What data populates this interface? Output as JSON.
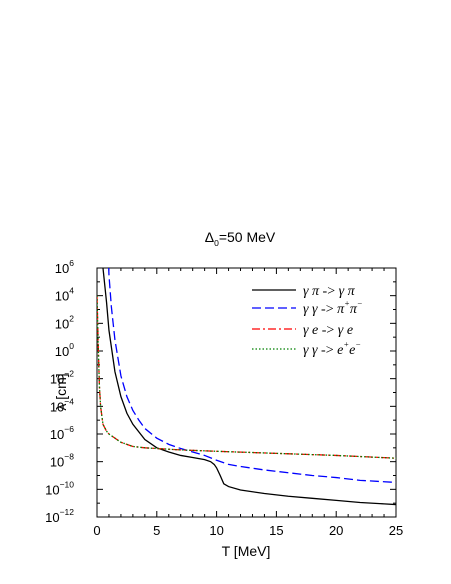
{
  "chart_data": {
    "type": "line",
    "title": "Δ0=50 MeV",
    "title_main": "Δ",
    "title_sub": "0",
    "title_rest": "=50 MeV",
    "xlabel": "T [MeV]",
    "ylabel": "λ [cm]",
    "xlim": [
      0,
      25
    ],
    "ylim_log10": [
      -12,
      6
    ],
    "y_scale": "log",
    "x_ticks": [
      0,
      5,
      10,
      15,
      20,
      25
    ],
    "y_tick_exponents": [
      6,
      4,
      2,
      0,
      -2,
      -4,
      -6,
      -8,
      -10,
      -12
    ],
    "y_tick_base": "10",
    "legend_position": "top-right",
    "series": [
      {
        "name": "γ π -> γ π",
        "color": "#000000",
        "dash": "solid",
        "x": [
          0.3,
          0.5,
          0.8,
          1.0,
          1.5,
          2.0,
          2.5,
          3.0,
          4.0,
          5.0,
          6.0,
          7.0,
          8.0,
          9.0,
          9.5,
          9.8,
          10.0,
          10.3,
          10.6,
          11.0,
          12.0,
          14.0,
          16.0,
          18.0,
          20.0,
          22.0,
          24.0,
          25.0
        ],
        "y_log10": [
          8,
          6,
          3.5,
          1.5,
          -1.5,
          -3.3,
          -4.5,
          -5.3,
          -6.4,
          -7.0,
          -7.3,
          -7.55,
          -7.7,
          -7.85,
          -8.0,
          -8.2,
          -8.45,
          -9.0,
          -9.6,
          -9.8,
          -10.05,
          -10.3,
          -10.5,
          -10.65,
          -10.8,
          -10.95,
          -11.05,
          -11.1
        ]
      },
      {
        "name": "γ γ -> π+π−",
        "color": "#0000ff",
        "dash": "dashed",
        "x": [
          0.9,
          1.0,
          1.2,
          1.5,
          2.0,
          2.5,
          3.0,
          3.5,
          4.0,
          5.0,
          6.0,
          7.0,
          8.0,
          9.0,
          10.0,
          11.0,
          12.0,
          14.0,
          16.0,
          18.0,
          20.0,
          22.0,
          24.0,
          25.0
        ],
        "y_log10": [
          8,
          5.5,
          3.2,
          0.8,
          -1.8,
          -3.3,
          -4.3,
          -5.0,
          -5.6,
          -6.3,
          -6.75,
          -7.05,
          -7.3,
          -7.55,
          -7.9,
          -8.2,
          -8.35,
          -8.6,
          -8.8,
          -9.0,
          -9.15,
          -9.35,
          -9.45,
          -9.5
        ]
      },
      {
        "name": "γ e -> γ e",
        "color": "#ff0000",
        "dash": "dashdot",
        "x": [
          0.0,
          0.1,
          0.2,
          0.3,
          0.5,
          0.8,
          1.0,
          1.5,
          2.0,
          3.0,
          4.0,
          5.0,
          7.0,
          10.0,
          15.0,
          20.0,
          25.0
        ],
        "y_log10": [
          4.0,
          0.5,
          -2.5,
          -4.0,
          -5.3,
          -5.8,
          -6.0,
          -6.3,
          -6.6,
          -6.9,
          -7.0,
          -7.05,
          -7.15,
          -7.25,
          -7.4,
          -7.55,
          -7.75
        ]
      },
      {
        "name": "γ γ -> e+e−",
        "color": "#008000",
        "dash": "dotted",
        "x": [
          0.0,
          0.1,
          0.2,
          0.3,
          0.5,
          0.8,
          1.0,
          1.5,
          2.0,
          3.0,
          4.0,
          5.0,
          7.0,
          10.0,
          15.0,
          20.0,
          25.0
        ],
        "y_log10": [
          4.0,
          0.5,
          -2.5,
          -4.0,
          -5.3,
          -5.8,
          -6.0,
          -6.3,
          -6.6,
          -6.9,
          -7.0,
          -7.05,
          -7.15,
          -7.25,
          -7.4,
          -7.55,
          -7.75
        ]
      }
    ],
    "legend_entries": [
      {
        "a": "γ π",
        "arrow": " -> ",
        "b": "γ π",
        "b_sup": ""
      },
      {
        "a": "γ γ",
        "arrow": " -> ",
        "b": "π",
        "b_sup": "+",
        "c": "π",
        "c_sup": "−"
      },
      {
        "a": "γ e",
        "arrow": " -> ",
        "b": "γ e",
        "b_sup": ""
      },
      {
        "a": "γ γ",
        "arrow": " -> ",
        "b": "e",
        "b_sup": "+",
        "c": "e",
        "c_sup": "−"
      }
    ]
  }
}
